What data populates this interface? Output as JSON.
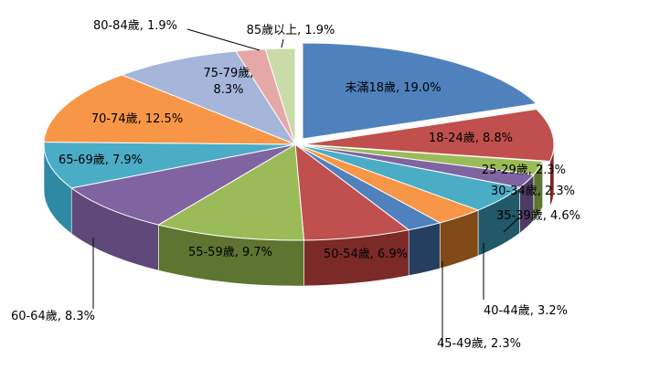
{
  "chart_data": {
    "type": "pie",
    "variant": "3d-exploded",
    "slices": [
      {
        "label": "未滿18歲",
        "value": 19.0,
        "value_text": "19.0%",
        "color": "#4F81BD",
        "side": "#2C4D75"
      },
      {
        "label": "18-24歲",
        "value": 8.8,
        "value_text": "8.8%",
        "color": "#C0504D",
        "side": "#7B2A28"
      },
      {
        "label": "25-29歲",
        "value": 2.3,
        "value_text": "2.3%",
        "color": "#9BBB59",
        "side": "#5D7530"
      },
      {
        "label": "30-34歲",
        "value": 2.3,
        "value_text": "2.3%",
        "color": "#8064A2",
        "side": "#4D3B63"
      },
      {
        "label": "35-39歲",
        "value": 4.6,
        "value_text": "4.6%",
        "color": "#4BACC6",
        "side": "#215968"
      },
      {
        "label": "40-44歲",
        "value": 3.2,
        "value_text": "3.2%",
        "color": "#F79646",
        "side": "#7F4A17"
      },
      {
        "label": "45-49歲",
        "value": 2.3,
        "value_text": "2.3%",
        "color": "#4F81BD",
        "side": "#243F60"
      },
      {
        "label": "50-54歲",
        "value": 6.9,
        "value_text": "6.9%",
        "color": "#C0504D",
        "side": "#7B2A28"
      },
      {
        "label": "55-59歲",
        "value": 9.7,
        "value_text": "9.7%",
        "color": "#9BBB59",
        "side": "#5D7530"
      },
      {
        "label": "60-64歲",
        "value": 8.3,
        "value_text": "8.3%",
        "color": "#8064A2",
        "side": "#5E497A"
      },
      {
        "label": "65-69歲",
        "value": 7.9,
        "value_text": "7.9%",
        "color": "#4BACC6",
        "side": "#2E8AA3"
      },
      {
        "label": "70-74歲",
        "value": 12.5,
        "value_text": "12.5%",
        "color": "#F79646",
        "side": "#B86A26"
      },
      {
        "label": "75-79歲",
        "value": 8.3,
        "value_text": "8.3%",
        "color": "#A5B6DA",
        "side": "#7A8EBA"
      },
      {
        "label": "80-84歲",
        "value": 1.9,
        "value_text": "1.9%",
        "color": "#E6A8A7",
        "side": "#B57B7A"
      },
      {
        "label": "85歲以上",
        "value": 1.9,
        "value_text": "1.9%",
        "color": "#C9DBA8",
        "side": "#9AB07A"
      }
    ]
  }
}
